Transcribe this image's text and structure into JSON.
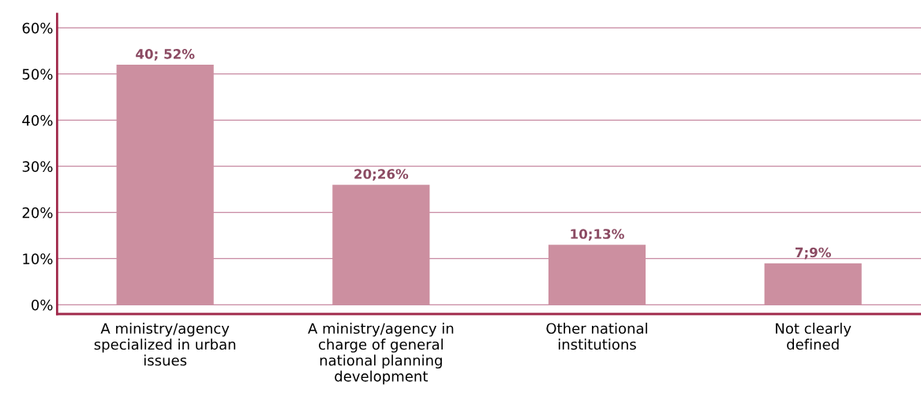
{
  "chart_data": {
    "type": "bar",
    "categories": [
      "A ministry/agency\nspecialized in urban\nissues",
      "A ministry/agency in\ncharge of general\nnational planning\ndevelopment",
      "Other national\ninstitutions",
      "Not clearly\ndefined"
    ],
    "values": [
      52,
      26,
      13,
      9
    ],
    "value_labels": [
      "40; 52%",
      "20;26%",
      "10;13%",
      "7;9%"
    ],
    "color": "#cc8fa0",
    "ylim": [
      -2,
      63
    ],
    "yticks": [
      {
        "value": 0,
        "label": "0%"
      },
      {
        "value": 10,
        "label": "10%"
      },
      {
        "value": 20,
        "label": "20%"
      },
      {
        "value": 30,
        "label": "30%"
      },
      {
        "value": 40,
        "label": "40%"
      },
      {
        "value": 50,
        "label": "50%"
      },
      {
        "value": 60,
        "label": "60%"
      }
    ],
    "grid": "y"
  }
}
